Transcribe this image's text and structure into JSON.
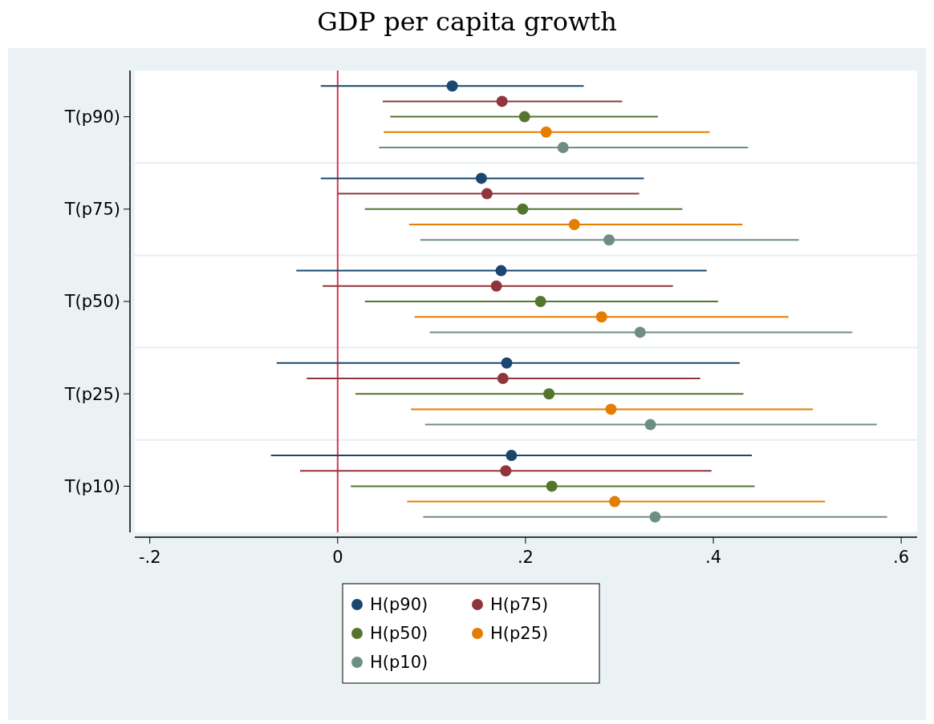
{
  "chart_data": {
    "type": "scatter",
    "title": "GDP per capita growth",
    "orientation": "horizontal",
    "categories": [
      "T(p90)",
      "T(p75)",
      "T(p50)",
      "T(p25)",
      "T(p10)"
    ],
    "xlim": [
      -0.216,
      0.617
    ],
    "xticks": [
      {
        "value": -0.2,
        "label": "-.2"
      },
      0,
      {
        "value": 0.2,
        "label": ".2"
      },
      {
        "value": 0.4,
        "label": ".4"
      },
      {
        "value": 0.6,
        "label": ".6"
      }
    ],
    "grid": "y",
    "legend": "bottom",
    "marker": "circle",
    "ref_lines": [
      {
        "axis": "x",
        "value": 0,
        "color": "#d6375a"
      }
    ],
    "series": [
      {
        "name": "H(p90)",
        "color": "#1a476f",
        "values": [
          0.122,
          0.153,
          0.174,
          0.18,
          0.185
        ],
        "errors": [
          [
            -0.018,
            0.262
          ],
          [
            -0.018,
            0.326
          ],
          [
            -0.044,
            0.393
          ],
          [
            -0.065,
            0.428
          ],
          [
            -0.071,
            0.441
          ]
        ]
      },
      {
        "name": "H(p75)",
        "color": "#90353b",
        "values": [
          0.175,
          0.159,
          0.169,
          0.176,
          0.179
        ],
        "errors": [
          [
            0.048,
            0.303
          ],
          [
            0.0,
            0.321
          ],
          [
            -0.016,
            0.357
          ],
          [
            -0.033,
            0.386
          ],
          [
            -0.04,
            0.398
          ]
        ]
      },
      {
        "name": "H(p50)",
        "color": "#55752f",
        "values": [
          0.199,
          0.197,
          0.216,
          0.225,
          0.228
        ],
        "errors": [
          [
            0.056,
            0.341
          ],
          [
            0.029,
            0.367
          ],
          [
            0.029,
            0.405
          ],
          [
            0.019,
            0.432
          ],
          [
            0.014,
            0.444
          ]
        ]
      },
      {
        "name": "H(p25)",
        "color": "#e37e00",
        "values": [
          0.222,
          0.252,
          0.281,
          0.291,
          0.295
        ],
        "errors": [
          [
            0.049,
            0.396
          ],
          [
            0.076,
            0.431
          ],
          [
            0.082,
            0.48
          ],
          [
            0.078,
            0.506
          ],
          [
            0.074,
            0.519
          ]
        ]
      },
      {
        "name": "H(p10)",
        "color": "#6e8e84",
        "values": [
          0.24,
          0.289,
          0.322,
          0.333,
          0.338
        ],
        "errors": [
          [
            0.044,
            0.437
          ],
          [
            0.088,
            0.491
          ],
          [
            0.098,
            0.548
          ],
          [
            0.093,
            0.574
          ],
          [
            0.091,
            0.585
          ]
        ]
      }
    ]
  }
}
